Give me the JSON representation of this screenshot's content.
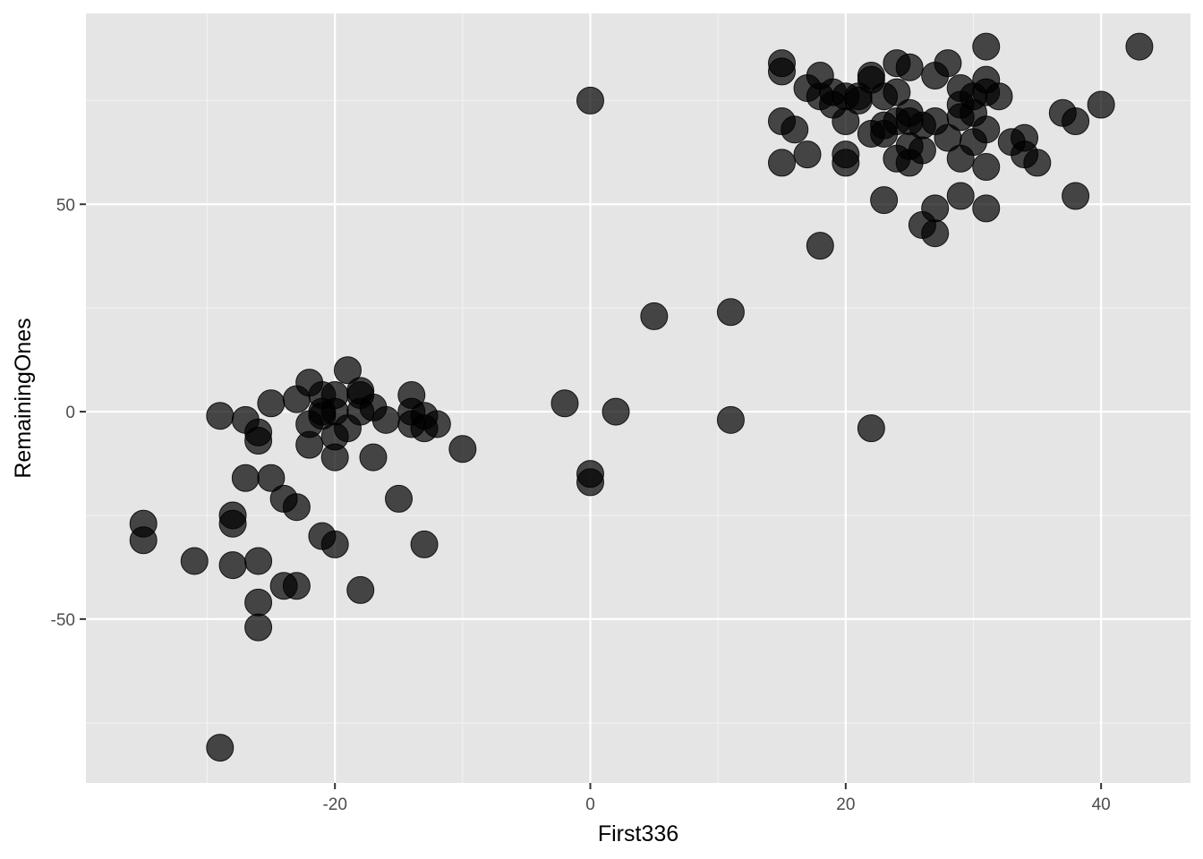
{
  "chart_data": {
    "type": "scatter",
    "title": "",
    "xlabel": "First336",
    "ylabel": "RemainingOnes",
    "xlim": [
      -39.5,
      47
    ],
    "ylim": [
      -89.5,
      96
    ],
    "x_ticks": [
      -20,
      0,
      20,
      40
    ],
    "x_tick_labels": [
      "-20",
      "0",
      "20",
      "40"
    ],
    "y_ticks": [
      -50,
      0,
      50
    ],
    "y_tick_labels": [
      "-50",
      "0",
      "50"
    ],
    "grid": true,
    "legend": "none",
    "colors": {
      "panel_background": "#e5e5e5",
      "grid_major": "#ffffff",
      "grid_minor": "#f2f2f2",
      "point_fill": "#000000",
      "point_opacity": 0.7,
      "tick_mark": "#333333"
    },
    "points": [
      {
        "x": -35,
        "y": -27
      },
      {
        "x": -35,
        "y": -31
      },
      {
        "x": -31,
        "y": -36
      },
      {
        "x": -29,
        "y": -1
      },
      {
        "x": -29,
        "y": -81
      },
      {
        "x": -28,
        "y": -25
      },
      {
        "x": -28,
        "y": -27
      },
      {
        "x": -28,
        "y": -37
      },
      {
        "x": -27,
        "y": -2
      },
      {
        "x": -27,
        "y": -16
      },
      {
        "x": -26,
        "y": -5
      },
      {
        "x": -26,
        "y": -7
      },
      {
        "x": -26,
        "y": -36
      },
      {
        "x": -26,
        "y": -46
      },
      {
        "x": -26,
        "y": -52
      },
      {
        "x": -25,
        "y": 2
      },
      {
        "x": -25,
        "y": -16
      },
      {
        "x": -24,
        "y": -21
      },
      {
        "x": -24,
        "y": -42
      },
      {
        "x": -23,
        "y": 3
      },
      {
        "x": -23,
        "y": -23
      },
      {
        "x": -23,
        "y": -42
      },
      {
        "x": -22,
        "y": 7
      },
      {
        "x": -22,
        "y": -3
      },
      {
        "x": -22,
        "y": -8
      },
      {
        "x": -21,
        "y": 4
      },
      {
        "x": -21,
        "y": 0
      },
      {
        "x": -21,
        "y": -1
      },
      {
        "x": -21,
        "y": -30
      },
      {
        "x": -20,
        "y": 4
      },
      {
        "x": -20,
        "y": 0
      },
      {
        "x": -20,
        "y": -6
      },
      {
        "x": -20,
        "y": -11
      },
      {
        "x": -20,
        "y": -32
      },
      {
        "x": -19,
        "y": 10
      },
      {
        "x": -19,
        "y": -4
      },
      {
        "x": -18,
        "y": 5
      },
      {
        "x": -18,
        "y": 4
      },
      {
        "x": -18,
        "y": 0
      },
      {
        "x": -18,
        "y": -43
      },
      {
        "x": -17,
        "y": 1
      },
      {
        "x": -17,
        "y": -11
      },
      {
        "x": -16,
        "y": -2
      },
      {
        "x": -15,
        "y": -21
      },
      {
        "x": -14,
        "y": 4
      },
      {
        "x": -14,
        "y": 0
      },
      {
        "x": -14,
        "y": -3
      },
      {
        "x": -13,
        "y": -1
      },
      {
        "x": -13,
        "y": -4
      },
      {
        "x": -13,
        "y": -32
      },
      {
        "x": -12,
        "y": -3
      },
      {
        "x": -10,
        "y": -9
      },
      {
        "x": -2,
        "y": 2
      },
      {
        "x": 0,
        "y": 75
      },
      {
        "x": 0,
        "y": -15
      },
      {
        "x": 0,
        "y": -17
      },
      {
        "x": 2,
        "y": 0
      },
      {
        "x": 5,
        "y": 23
      },
      {
        "x": 11,
        "y": 24
      },
      {
        "x": 11,
        "y": -2
      },
      {
        "x": 15,
        "y": 84
      },
      {
        "x": 15,
        "y": 82
      },
      {
        "x": 15,
        "y": 70
      },
      {
        "x": 15,
        "y": 60
      },
      {
        "x": 16,
        "y": 68
      },
      {
        "x": 17,
        "y": 78
      },
      {
        "x": 17,
        "y": 62
      },
      {
        "x": 18,
        "y": 81
      },
      {
        "x": 18,
        "y": 76
      },
      {
        "x": 18,
        "y": 40
      },
      {
        "x": 19,
        "y": 77
      },
      {
        "x": 19,
        "y": 74
      },
      {
        "x": 20,
        "y": 76
      },
      {
        "x": 20,
        "y": 70
      },
      {
        "x": 20,
        "y": 62
      },
      {
        "x": 20,
        "y": 60
      },
      {
        "x": 21,
        "y": 76
      },
      {
        "x": 21,
        "y": 75
      },
      {
        "x": 22,
        "y": 81
      },
      {
        "x": 22,
        "y": 80
      },
      {
        "x": 22,
        "y": 67
      },
      {
        "x": 22,
        "y": -4
      },
      {
        "x": 23,
        "y": 76
      },
      {
        "x": 23,
        "y": 69
      },
      {
        "x": 23,
        "y": 67
      },
      {
        "x": 23,
        "y": 51
      },
      {
        "x": 24,
        "y": 84
      },
      {
        "x": 24,
        "y": 77
      },
      {
        "x": 24,
        "y": 70
      },
      {
        "x": 24,
        "y": 61
      },
      {
        "x": 25,
        "y": 83
      },
      {
        "x": 25,
        "y": 72
      },
      {
        "x": 25,
        "y": 70
      },
      {
        "x": 25,
        "y": 64
      },
      {
        "x": 25,
        "y": 60
      },
      {
        "x": 26,
        "y": 69
      },
      {
        "x": 26,
        "y": 63
      },
      {
        "x": 26,
        "y": 45
      },
      {
        "x": 27,
        "y": 81
      },
      {
        "x": 27,
        "y": 70
      },
      {
        "x": 27,
        "y": 49
      },
      {
        "x": 27,
        "y": 43
      },
      {
        "x": 28,
        "y": 84
      },
      {
        "x": 28,
        "y": 66
      },
      {
        "x": 29,
        "y": 78
      },
      {
        "x": 29,
        "y": 74
      },
      {
        "x": 29,
        "y": 71
      },
      {
        "x": 29,
        "y": 61
      },
      {
        "x": 29,
        "y": 52
      },
      {
        "x": 30,
        "y": 76
      },
      {
        "x": 30,
        "y": 72
      },
      {
        "x": 30,
        "y": 65
      },
      {
        "x": 31,
        "y": 88
      },
      {
        "x": 31,
        "y": 80
      },
      {
        "x": 31,
        "y": 77
      },
      {
        "x": 31,
        "y": 68
      },
      {
        "x": 31,
        "y": 59
      },
      {
        "x": 31,
        "y": 49
      },
      {
        "x": 32,
        "y": 76
      },
      {
        "x": 33,
        "y": 65
      },
      {
        "x": 34,
        "y": 66
      },
      {
        "x": 34,
        "y": 62
      },
      {
        "x": 35,
        "y": 60
      },
      {
        "x": 37,
        "y": 72
      },
      {
        "x": 38,
        "y": 70
      },
      {
        "x": 38,
        "y": 52
      },
      {
        "x": 40,
        "y": 74
      },
      {
        "x": 43,
        "y": 88
      }
    ]
  }
}
